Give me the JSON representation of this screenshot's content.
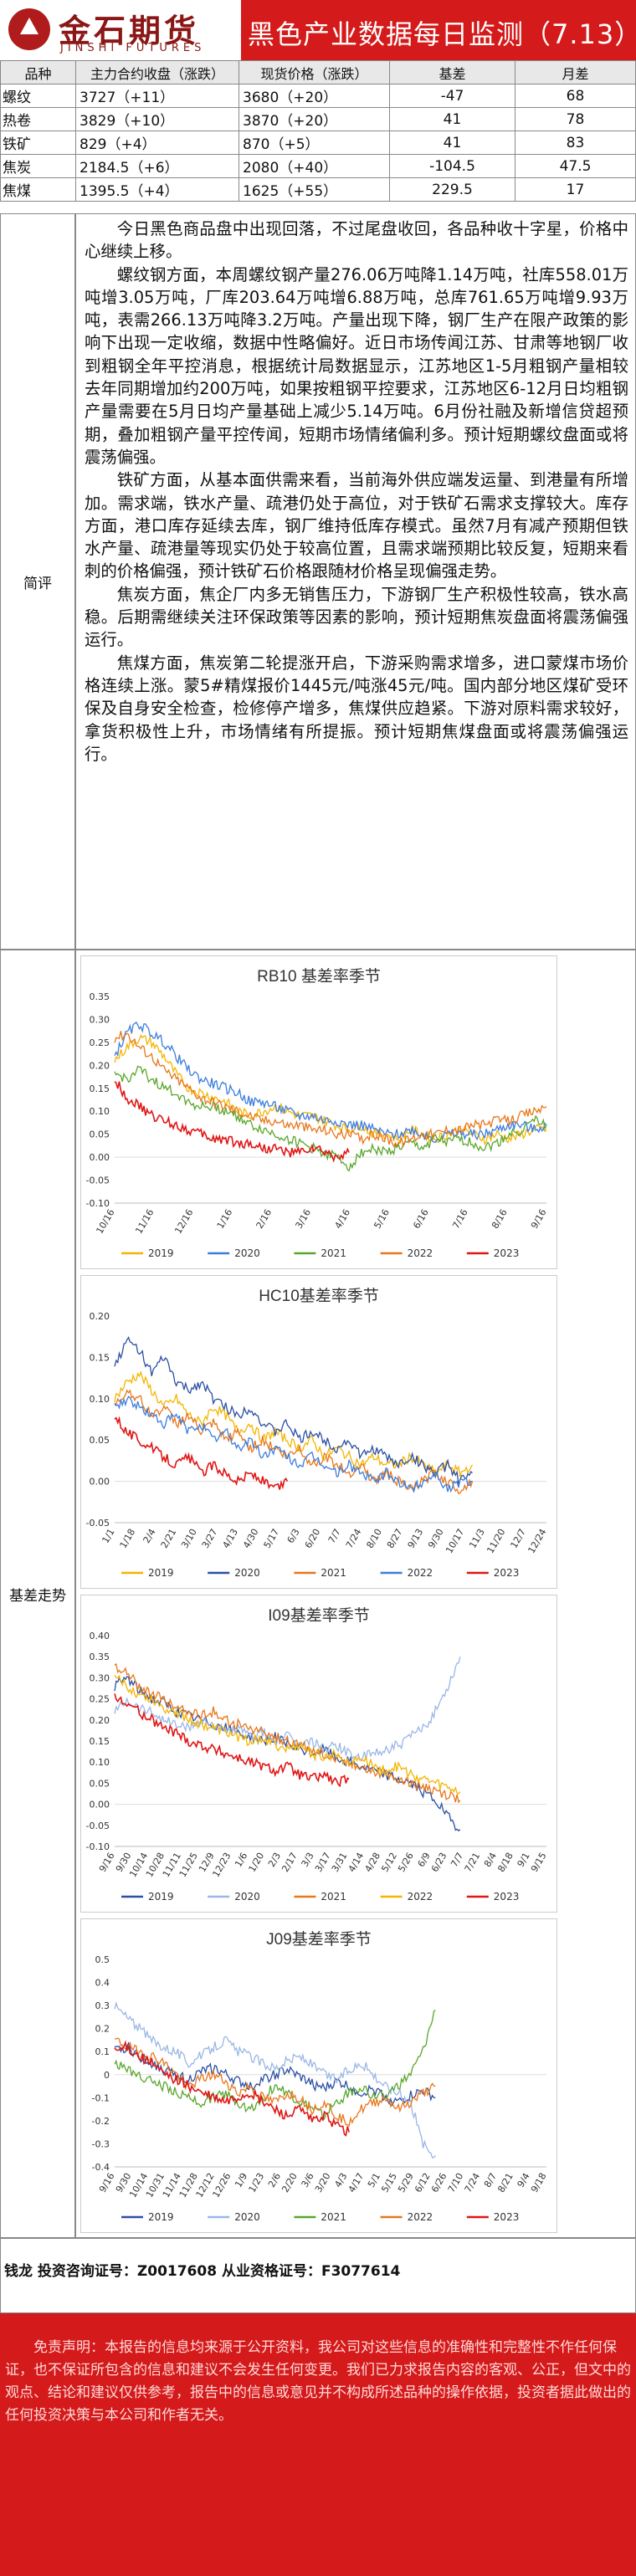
{
  "header": {
    "logo_cn": "金石期货",
    "logo_en": "JINSHI FUTURES",
    "title": "黑色产业数据每日监测（7.13）"
  },
  "table": {
    "headers": [
      "品种",
      "主力合约收盘（涨跌）",
      "现货价格（涨跌）",
      "基差",
      "月差"
    ],
    "rows": [
      {
        "name": "螺纹",
        "fut": "3727（+11）",
        "spot": "3680（+20）",
        "basis": "-47",
        "spread": "68"
      },
      {
        "name": "热卷",
        "fut": "3829（+10）",
        "spot": "3870（+20）",
        "basis": "41",
        "spread": "78"
      },
      {
        "name": "铁矿",
        "fut": "829（+4）",
        "spot": "870（+5）",
        "basis": "41",
        "spread": "83"
      },
      {
        "name": "焦炭",
        "fut": "2184.5（+6）",
        "spot": "2080（+40）",
        "basis": "-104.5",
        "spread": "47.5"
      },
      {
        "name": "焦煤",
        "fut": "1395.5（+4）",
        "spot": "1625（+55）",
        "basis": "229.5",
        "spread": "17"
      }
    ]
  },
  "summary": {
    "label": "简评",
    "paragraphs": [
      "今日黑色商品盘中出现回落，不过尾盘收回，各品种收十字星，价格中心继续上移。",
      "螺纹钢方面，本周螺纹钢产量276.06万吨降1.14万吨，社库558.01万吨增3.05万吨，厂库203.64万吨增6.88万吨，总库761.65万吨增9.93万吨，表需266.13万吨降3.2万吨。产量出现下降，钢厂生产在限产政策的影响下出现一定收缩，数据中性略偏好。近日市场传闻江苏、甘肃等地钢厂收到粗钢全年平控消息，根据统计局数据显示，江苏地区1-5月粗钢产量相较去年同期增加约200万吨，如果按粗钢平控要求，江苏地区6-12月日均粗钢产量需要在5月日均产量基础上减少5.14万吨。6月份社融及新增信贷超预期，叠加粗钢产量平控传闻，短期市场情绪偏利多。预计短期螺纹盘面或将震荡偏强。",
      "铁矿方面，从基本面供需来看，当前海外供应端发运量、到港量有所增加。需求端，铁水产量、疏港仍处于高位，对于铁矿石需求支撑较大。库存方面，港口库存延续去库，钢厂维持低库存模式。虽然7月有减产预期但铁水产量、疏港量等现实仍处于较高位置，且需求端预期比较反复，短期来看刺的价格偏强，预计铁矿石价格跟随材价格呈现偏强走势。",
      "焦炭方面，焦企厂内多无销售压力，下游钢厂生产积极性较高，铁水高稳。后期需继续关注环保政策等因素的影响，预计短期焦炭盘面将震荡偏强运行。",
      "焦煤方面，焦炭第二轮提涨开启，下游采购需求增多，进口蒙煤市场价格连续上涨。蒙5#精煤报价1445元/吨涨45元/吨。国内部分地区煤矿受环保及自身安全检查，检修停产增多，焦煤供应趋紧。下游对原料需求较好，拿货积极性上升，市场情绪有所提振。预计短期焦煤盘面或将震荡偏强运行。"
    ]
  },
  "trend_label": "基差走势",
  "colors": {
    "2019": "#f4b400",
    "2020": "#3c7ddc",
    "2021": "#59a62c",
    "2022": "#e8761a",
    "2023": "#e01515",
    "2019b": "#2a4fa3",
    "2020b": "#9ab7e6"
  },
  "chart_data": [
    {
      "type": "line",
      "title": "RB10 基差率季节",
      "ylim": [
        -0.1,
        0.35
      ],
      "yticks": [
        "0.35",
        "0.30",
        "0.25",
        "0.20",
        "0.15",
        "0.10",
        "0.05",
        "0.00",
        "-0.05",
        "-0.10"
      ],
      "xticks": [
        "10/16",
        "11/16",
        "12/16",
        "1/16",
        "2/16",
        "3/16",
        "4/16",
        "5/16",
        "6/16",
        "7/16",
        "8/16",
        "9/16"
      ],
      "series": [
        {
          "name": "2019",
          "color_key": "2019",
          "values": [
            0.21,
            0.24,
            0.26,
            0.25,
            0.22,
            0.18,
            0.15,
            0.14,
            0.13,
            0.12,
            0.1,
            0.09,
            0.1,
            0.11,
            0.1,
            0.09,
            0.09,
            0.08,
            0.07,
            0.06,
            0.07,
            0.05,
            0.05,
            0.04,
            0.06,
            0.05,
            0.04,
            0.05,
            0.06,
            0.05,
            0.04,
            0.05,
            0.04,
            0.05,
            0.06,
            0.06
          ]
        },
        {
          "name": "2020",
          "color_key": "2020",
          "values": [
            0.22,
            0.27,
            0.29,
            0.27,
            0.25,
            0.22,
            0.19,
            0.17,
            0.16,
            0.15,
            0.14,
            0.12,
            0.12,
            0.11,
            0.1,
            0.09,
            0.09,
            0.08,
            0.08,
            0.07,
            0.07,
            0.06,
            0.05,
            0.05,
            0.06,
            0.05,
            0.04,
            0.05,
            0.05,
            0.05,
            0.05,
            0.06,
            0.07,
            0.07,
            0.06,
            0.07
          ]
        },
        {
          "name": "2021",
          "color_key": "2021",
          "values": [
            0.18,
            0.17,
            0.19,
            0.17,
            0.15,
            0.14,
            0.12,
            0.11,
            0.11,
            0.1,
            0.09,
            0.07,
            0.06,
            0.05,
            0.04,
            0.03,
            0.02,
            0.01,
            0.0,
            -0.02,
            0.01,
            0.02,
            0.01,
            0.02,
            0.03,
            0.02,
            0.04,
            0.03,
            0.04,
            0.03,
            0.02,
            0.03,
            0.05,
            0.06,
            0.08,
            0.07
          ]
        },
        {
          "name": "2022",
          "color_key": "2022",
          "values": [
            0.26,
            0.27,
            0.24,
            0.22,
            0.19,
            0.17,
            0.15,
            0.13,
            0.12,
            0.11,
            0.1,
            0.09,
            0.08,
            0.08,
            0.07,
            0.07,
            0.06,
            0.06,
            0.05,
            0.05,
            0.04,
            0.05,
            0.04,
            0.03,
            0.04,
            0.05,
            0.05,
            0.06,
            0.06,
            0.07,
            0.07,
            0.08,
            0.08,
            0.09,
            0.1,
            0.11
          ]
        },
        {
          "name": "2023",
          "color_key": "2023",
          "values": [
            0.17,
            0.13,
            0.11,
            0.09,
            0.08,
            0.07,
            0.06,
            0.05,
            0.04,
            0.04,
            0.03,
            0.03,
            0.02,
            0.02,
            0.01,
            0.01,
            0.02,
            0.01,
            0.0,
            0.01
          ]
        }
      ]
    },
    {
      "type": "line",
      "title": "HC10基差率季节",
      "ylim": [
        -0.05,
        0.2
      ],
      "yticks": [
        "0.20",
        "0.15",
        "0.10",
        "0.05",
        "0.00",
        "-0.05"
      ],
      "xticks": [
        "1/1",
        "1/18",
        "2/4",
        "2/21",
        "3/10",
        "3/27",
        "4/13",
        "4/30",
        "5/17",
        "6/3",
        "6/20",
        "7/7",
        "7/24",
        "8/10",
        "8/27",
        "9/13",
        "9/30",
        "10/17",
        "11/3",
        "11/20",
        "12/7",
        "12/24"
      ],
      "series": [
        {
          "name": "2019",
          "color_key": "2019",
          "values": [
            0.1,
            0.12,
            0.13,
            0.11,
            0.09,
            0.1,
            0.08,
            0.07,
            0.09,
            0.08,
            0.06,
            0.07,
            0.05,
            0.06,
            0.05,
            0.04,
            0.05,
            0.03,
            0.04,
            0.03,
            0.02,
            0.03,
            0.02,
            0.02,
            0.03,
            0.02,
            0.01,
            0.02,
            0.01,
            0.02
          ]
        },
        {
          "name": "2020",
          "color_key": "2019b",
          "values": [
            0.14,
            0.17,
            0.16,
            0.13,
            0.15,
            0.12,
            0.11,
            0.12,
            0.1,
            0.09,
            0.08,
            0.09,
            0.07,
            0.06,
            0.07,
            0.05,
            0.06,
            0.05,
            0.04,
            0.05,
            0.03,
            0.04,
            0.03,
            0.02,
            0.03,
            0.02,
            0.01,
            0.02,
            0.0,
            0.01
          ]
        },
        {
          "name": "2021",
          "color_key": "2022",
          "values": [
            0.09,
            0.11,
            0.1,
            0.08,
            0.09,
            0.07,
            0.08,
            0.06,
            0.07,
            0.05,
            0.06,
            0.04,
            0.05,
            0.04,
            0.03,
            0.04,
            0.02,
            0.03,
            0.02,
            0.01,
            0.02,
            0.0,
            0.01,
            0.0,
            -0.01,
            0.0,
            0.01,
            0.0,
            -0.01,
            0.0
          ]
        },
        {
          "name": "2022",
          "color_key": "2020",
          "values": [
            0.09,
            0.1,
            0.09,
            0.08,
            0.07,
            0.08,
            0.06,
            0.07,
            0.05,
            0.06,
            0.04,
            0.05,
            0.03,
            0.04,
            0.03,
            0.02,
            0.03,
            0.02,
            0.01,
            0.02,
            0.01,
            0.0,
            0.01,
            0.0,
            -0.01,
            0.0,
            0.01,
            -0.01,
            0.0,
            0.0
          ]
        },
        {
          "name": "2023",
          "color_key": "2023",
          "values": [
            0.08,
            0.06,
            0.05,
            0.04,
            0.03,
            0.02,
            0.03,
            0.01,
            0.02,
            0.01,
            0.0,
            0.01,
            0.0,
            -0.01,
            0.0
          ]
        }
      ]
    },
    {
      "type": "line",
      "title": "I09基差率季节",
      "ylim": [
        -0.1,
        0.4
      ],
      "yticks": [
        "0.40",
        "0.35",
        "0.30",
        "0.25",
        "0.20",
        "0.15",
        "0.10",
        "0.05",
        "0.00",
        "-0.05",
        "-0.10"
      ],
      "xticks": [
        "9/16",
        "9/30",
        "10/14",
        "10/28",
        "11/11",
        "11/25",
        "12/9",
        "12/23",
        "1/6",
        "1/20",
        "2/3",
        "2/17",
        "3/3",
        "3/17",
        "3/31",
        "4/14",
        "4/28",
        "5/12",
        "5/26",
        "6/9",
        "6/23",
        "7/7",
        "7/21",
        "8/4",
        "8/18",
        "9/1",
        "9/15"
      ],
      "series": [
        {
          "name": "2019",
          "color_key": "2019b",
          "values": [
            0.28,
            0.3,
            0.27,
            0.25,
            0.24,
            0.22,
            0.21,
            0.2,
            0.19,
            0.18,
            0.17,
            0.16,
            0.15,
            0.16,
            0.14,
            0.13,
            0.12,
            0.13,
            0.11,
            0.1,
            0.09,
            0.08,
            0.07,
            0.06,
            0.05,
            0.03,
            0.01,
            -0.03,
            -0.06
          ]
        },
        {
          "name": "2020",
          "color_key": "2020b",
          "values": [
            0.22,
            0.25,
            0.23,
            0.22,
            0.2,
            0.19,
            0.18,
            0.2,
            0.19,
            0.17,
            0.18,
            0.16,
            0.17,
            0.15,
            0.16,
            0.14,
            0.15,
            0.13,
            0.14,
            0.12,
            0.11,
            0.12,
            0.13,
            0.14,
            0.16,
            0.18,
            0.22,
            0.28,
            0.35
          ]
        },
        {
          "name": "2021",
          "color_key": "2022",
          "values": [
            0.33,
            0.31,
            0.28,
            0.26,
            0.25,
            0.23,
            0.22,
            0.21,
            0.22,
            0.2,
            0.19,
            0.18,
            0.17,
            0.16,
            0.15,
            0.14,
            0.13,
            0.12,
            0.11,
            0.1,
            0.09,
            0.08,
            0.07,
            0.06,
            0.05,
            0.04,
            0.03,
            0.02,
            0.01
          ]
        },
        {
          "name": "2022",
          "color_key": "2019",
          "values": [
            0.3,
            0.28,
            0.26,
            0.25,
            0.23,
            0.22,
            0.2,
            0.19,
            0.18,
            0.17,
            0.16,
            0.15,
            0.16,
            0.14,
            0.13,
            0.14,
            0.12,
            0.11,
            0.12,
            0.1,
            0.11,
            0.09,
            0.08,
            0.09,
            0.07,
            0.06,
            0.05,
            0.04,
            0.03
          ]
        },
        {
          "name": "2023",
          "color_key": "2023",
          "values": [
            0.25,
            0.24,
            0.22,
            0.2,
            0.18,
            0.17,
            0.15,
            0.14,
            0.13,
            0.12,
            0.11,
            0.1,
            0.09,
            0.08,
            0.09,
            0.07,
            0.06,
            0.07,
            0.05,
            0.06
          ]
        }
      ]
    },
    {
      "type": "line",
      "title": "J09基差率季节",
      "ylim": [
        -0.4,
        0.5
      ],
      "yticks": [
        "0.5",
        "0.4",
        "0.3",
        "0.2",
        "0.1",
        "0",
        "-0.1",
        "-0.2",
        "-0.3",
        "-0.4"
      ],
      "xticks": [
        "9/16",
        "9/30",
        "10/14",
        "10/31",
        "11/14",
        "11/28",
        "12/12",
        "12/26",
        "1/9",
        "1/23",
        "2/6",
        "2/20",
        "3/6",
        "3/20",
        "4/3",
        "4/17",
        "5/1",
        "5/15",
        "5/29",
        "6/12",
        "6/26",
        "7/10",
        "7/24",
        "8/7",
        "8/21",
        "9/4",
        "9/18"
      ],
      "series": [
        {
          "name": "2019",
          "color_key": "2019b",
          "values": [
            0.1,
            0.12,
            0.08,
            0.05,
            0.02,
            0.0,
            -0.02,
            0.01,
            0.03,
            0.0,
            -0.03,
            -0.05,
            -0.02,
            0.0,
            0.02,
            -0.01,
            -0.04,
            -0.06,
            -0.03,
            -0.05,
            -0.08,
            -0.06,
            -0.1,
            -0.12,
            -0.09,
            -0.07,
            -0.1
          ]
        },
        {
          "name": "2020",
          "color_key": "2020b",
          "values": [
            0.3,
            0.25,
            0.2,
            0.15,
            0.12,
            0.1,
            0.05,
            0.08,
            0.12,
            0.15,
            0.1,
            0.08,
            0.05,
            0.03,
            0.06,
            0.08,
            0.04,
            0.0,
            -0.02,
            0.02,
            0.05,
            0.0,
            -0.05,
            -0.08,
            -0.12,
            -0.3,
            -0.35
          ]
        },
        {
          "name": "2021",
          "color_key": "2021",
          "values": [
            0.05,
            0.02,
            0.0,
            -0.03,
            -0.05,
            -0.08,
            -0.1,
            -0.12,
            -0.1,
            -0.08,
            -0.12,
            -0.15,
            -0.1,
            -0.05,
            -0.08,
            -0.12,
            -0.15,
            -0.18,
            -0.12,
            -0.08,
            -0.05,
            -0.1,
            -0.08,
            -0.05,
            0.0,
            0.1,
            0.28
          ]
        },
        {
          "name": "2022",
          "color_key": "2022",
          "values": [
            0.15,
            0.12,
            0.1,
            0.08,
            0.05,
            0.0,
            -0.05,
            -0.02,
            0.0,
            -0.03,
            -0.08,
            -0.05,
            -0.1,
            -0.12,
            -0.08,
            -0.1,
            -0.15,
            -0.12,
            -0.18,
            -0.2,
            -0.15,
            -0.12,
            -0.1,
            -0.15,
            -0.12,
            -0.08,
            -0.05
          ]
        },
        {
          "name": "2023",
          "color_key": "2023",
          "values": [
            0.1,
            0.12,
            0.08,
            0.05,
            0.0,
            -0.02,
            -0.05,
            -0.08,
            -0.1,
            -0.12,
            -0.1,
            -0.08,
            -0.12,
            -0.15,
            -0.18,
            -0.15,
            -0.2,
            -0.18,
            -0.22,
            -0.25
          ]
        }
      ]
    }
  ],
  "legend_years": [
    "2019",
    "2020",
    "2021",
    "2022",
    "2023"
  ],
  "signature": "钱龙  投资咨询证号：Z0017608  从业资格证号：F3077614",
  "disclaimer": "免责声明：本报告的信息均来源于公开资料，我公司对这些信息的准确性和完整性不作任何保证，也不保证所包含的信息和建议不会发生任何变更。我们已力求报告内容的客观、公正，但文中的观点、结论和建议仅供参考，报告中的信息或意见并不构成所述品种的操作依据，投资者据此做出的任何投资决策与本公司和作者无关。"
}
